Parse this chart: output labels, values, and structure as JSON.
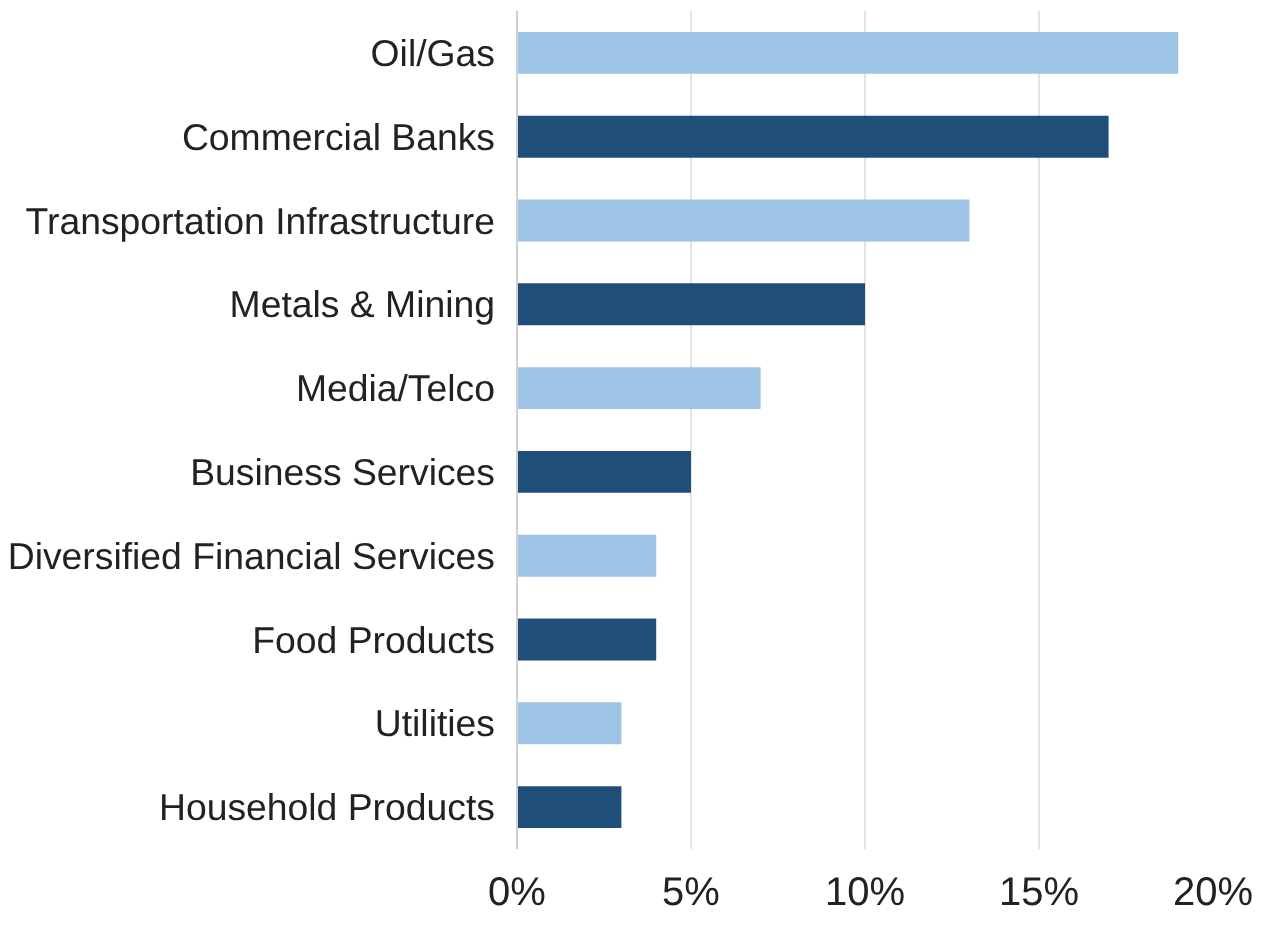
{
  "chart_data": {
    "type": "bar",
    "orientation": "horizontal",
    "categories": [
      "Oil/Gas",
      "Commercial Banks",
      "Transportation Infrastructure",
      "Metals & Mining",
      "Media/Telco",
      "Business Services",
      "Diversified Financial Services",
      "Food Products",
      "Utilities",
      "Household Products"
    ],
    "values": [
      19,
      17,
      13,
      10,
      7,
      5,
      4,
      4,
      3,
      3
    ],
    "colors": [
      "#9dc3e6",
      "#1f4e79",
      "#9dc3e6",
      "#1f4e79",
      "#9dc3e6",
      "#1f4e79",
      "#9dc3e6",
      "#1f4e79",
      "#9dc3e6",
      "#1f4e79"
    ],
    "xlim": [
      0,
      20
    ],
    "xticks": [
      {
        "value": 0,
        "label": "0%"
      },
      {
        "value": 5,
        "label": "5%"
      },
      {
        "value": 10,
        "label": "10%"
      },
      {
        "value": 15,
        "label": "15%"
      },
      {
        "value": 20,
        "label": "20%"
      }
    ],
    "grid": "x"
  }
}
